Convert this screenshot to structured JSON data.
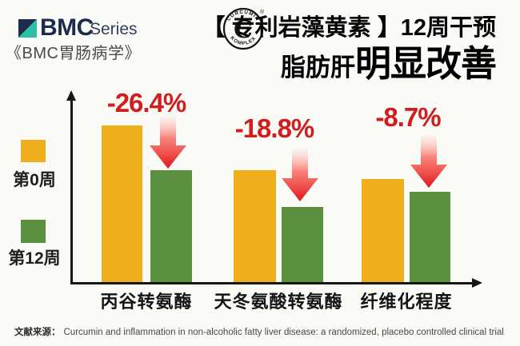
{
  "header": {
    "brand": "BMC",
    "brand_series": "Series",
    "journal": "《BMC胃肠病学》",
    "stamp": {
      "letter": "C",
      "arc_top": "CURCUMIN",
      "arc_bottom": "KOMPLEX",
      "registered": "®"
    },
    "title_line1": "【 专利岩藻黄素 】12周干预",
    "title_line2_prefix": "脂肪肝",
    "title_line2_emphasis": "明显改善"
  },
  "legend": {
    "items": [
      {
        "label": "第0周",
        "color": "#efaf1d"
      },
      {
        "label": "第12周",
        "color": "#5a9040"
      }
    ]
  },
  "chart_data": {
    "type": "bar",
    "title": "【专利岩藻黄素】12周干预 脂肪肝明显改善",
    "categories": [
      "丙谷转氨酶",
      "天冬氨酸转氨酶",
      "纤维化程度"
    ],
    "series": [
      {
        "name": "第0周",
        "color": "#efaf1d",
        "values_rel": [
          196,
          140,
          129
        ]
      },
      {
        "name": "第12周",
        "color": "#5a9040",
        "values_rel": [
          140,
          94,
          113
        ]
      }
    ],
    "change_labels": [
      "-26.4%",
      "-18.8%",
      "-8.7%"
    ],
    "value_unit": "relative bar height (no numeric axis shown in figure)",
    "axes": {
      "x_label": "",
      "y_label": "",
      "numeric_ticks": false
    },
    "legend_position": "left",
    "annotation_color": "#d01e1e",
    "grid": false
  },
  "source": {
    "prefix": "文献来源：",
    "citation": "Curcumin and inflammation in non-alcoholic fatty liver disease: a randomized, placebo controlled clinical trial"
  }
}
